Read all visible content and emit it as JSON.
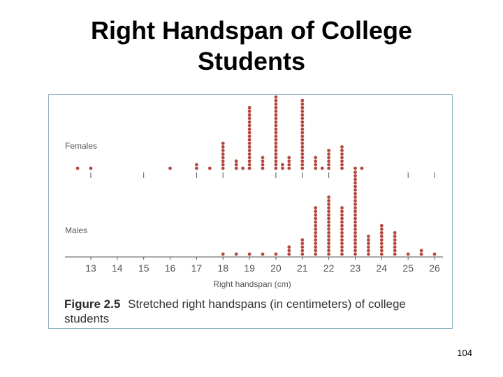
{
  "slide": {
    "title_line1": "Right Handspan of College",
    "title_line2": "Students",
    "page_number": "104"
  },
  "figure": {
    "label": "Figure 2.5",
    "caption": "Stretched right handspans (in centimeters) of college students"
  },
  "chart_data": {
    "type": "dotplot",
    "xlabel": "Right handspan (cm)",
    "xlim": [
      12,
      26.3
    ],
    "tick_labels": [
      "13",
      "14",
      "15",
      "16",
      "17",
      "18",
      "19",
      "20",
      "21",
      "22",
      "23",
      "24",
      "25",
      "26"
    ],
    "series": [
      {
        "name": "Females",
        "color": "#b5473f",
        "points": [
          {
            "x": 12.5,
            "count": 1
          },
          {
            "x": 13.0,
            "count": 1
          },
          {
            "x": 16.0,
            "count": 1
          },
          {
            "x": 17.0,
            "count": 2
          },
          {
            "x": 17.5,
            "count": 1
          },
          {
            "x": 18.0,
            "count": 8
          },
          {
            "x": 18.5,
            "count": 3
          },
          {
            "x": 18.75,
            "count": 1
          },
          {
            "x": 19.0,
            "count": 18
          },
          {
            "x": 19.5,
            "count": 4
          },
          {
            "x": 20.0,
            "count": 21
          },
          {
            "x": 20.25,
            "count": 2
          },
          {
            "x": 20.5,
            "count": 4
          },
          {
            "x": 21.0,
            "count": 20
          },
          {
            "x": 21.5,
            "count": 4
          },
          {
            "x": 21.75,
            "count": 1
          },
          {
            "x": 22.0,
            "count": 6
          },
          {
            "x": 22.5,
            "count": 7
          },
          {
            "x": 23.0,
            "count": 1
          },
          {
            "x": 23.25,
            "count": 1
          }
        ]
      },
      {
        "name": "Males",
        "color": "#b5473f",
        "points": [
          {
            "x": 18.0,
            "count": 1
          },
          {
            "x": 18.5,
            "count": 1
          },
          {
            "x": 19.0,
            "count": 1
          },
          {
            "x": 19.5,
            "count": 1
          },
          {
            "x": 20.0,
            "count": 1
          },
          {
            "x": 20.5,
            "count": 3
          },
          {
            "x": 21.0,
            "count": 5
          },
          {
            "x": 21.5,
            "count": 14
          },
          {
            "x": 22.0,
            "count": 17
          },
          {
            "x": 22.5,
            "count": 14
          },
          {
            "x": 23.0,
            "count": 24
          },
          {
            "x": 23.5,
            "count": 6
          },
          {
            "x": 24.0,
            "count": 9
          },
          {
            "x": 24.5,
            "count": 7
          },
          {
            "x": 25.0,
            "count": 1
          },
          {
            "x": 25.5,
            "count": 2
          },
          {
            "x": 26.0,
            "count": 1
          }
        ]
      }
    ]
  }
}
